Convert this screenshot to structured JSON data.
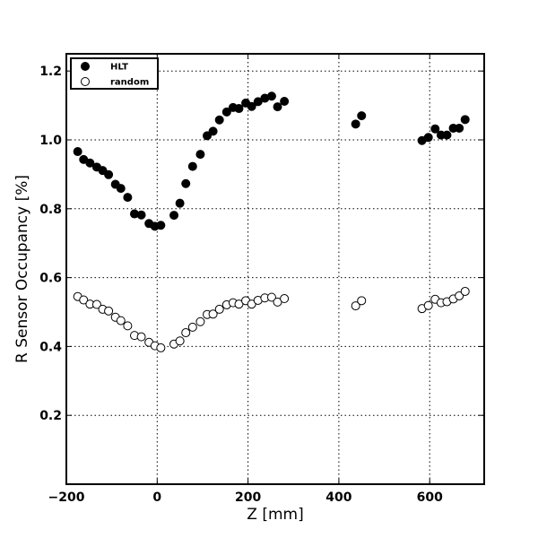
{
  "chart_data": {
    "type": "scatter",
    "title": "",
    "xlabel": "Z [mm]",
    "ylabel": "R Sensor Occupancy [%]",
    "xlim": [
      -200,
      720
    ],
    "ylim": [
      0,
      1.25
    ],
    "xticks": [
      -200,
      0,
      200,
      400,
      600
    ],
    "xtick_labels": [
      "−200",
      "0",
      "200",
      "400",
      "600"
    ],
    "yticks": [
      0.2,
      0.4,
      0.6,
      0.8,
      1.0,
      1.2
    ],
    "ytick_labels": [
      "0.2",
      "0.4",
      "0.6",
      "0.8",
      "1.0",
      "1.2"
    ],
    "grid": true,
    "legend_position": "top-left",
    "series": [
      {
        "name": "HLT",
        "marker": "filled-circle",
        "color": "#000000",
        "x": [
          -175,
          -162,
          -148,
          -133,
          -120,
          -107,
          -92,
          -80,
          -65,
          -50,
          -35,
          -18,
          -5,
          8,
          37,
          50,
          63,
          78,
          95,
          110,
          123,
          137,
          153,
          167,
          180,
          195,
          208,
          222,
          237,
          252,
          265,
          280,
          437,
          450,
          583,
          597,
          612,
          625,
          638,
          652,
          665,
          678
        ],
        "y": [
          0.966,
          0.943,
          0.933,
          0.921,
          0.911,
          0.899,
          0.871,
          0.859,
          0.833,
          0.785,
          0.782,
          0.757,
          0.749,
          0.752,
          0.781,
          0.816,
          0.873,
          0.923,
          0.958,
          1.012,
          1.025,
          1.058,
          1.081,
          1.094,
          1.091,
          1.107,
          1.097,
          1.111,
          1.121,
          1.127,
          1.096,
          1.112,
          1.046,
          1.07,
          0.998,
          1.007,
          1.032,
          1.014,
          1.014,
          1.034,
          1.034,
          1.059
        ]
      },
      {
        "name": "random",
        "marker": "open-circle",
        "color": "#000000",
        "x": [
          -175,
          -162,
          -148,
          -133,
          -120,
          -107,
          -92,
          -80,
          -65,
          -50,
          -35,
          -18,
          -5,
          8,
          37,
          50,
          63,
          78,
          95,
          110,
          123,
          137,
          153,
          167,
          180,
          195,
          208,
          222,
          237,
          252,
          265,
          280,
          437,
          450,
          583,
          597,
          612,
          625,
          638,
          652,
          665,
          678
        ],
        "y": [
          0.545,
          0.535,
          0.523,
          0.522,
          0.508,
          0.503,
          0.485,
          0.475,
          0.46,
          0.432,
          0.428,
          0.412,
          0.402,
          0.396,
          0.407,
          0.416,
          0.44,
          0.456,
          0.472,
          0.493,
          0.494,
          0.508,
          0.521,
          0.527,
          0.523,
          0.533,
          0.523,
          0.534,
          0.541,
          0.543,
          0.529,
          0.539,
          0.518,
          0.533,
          0.51,
          0.519,
          0.537,
          0.527,
          0.53,
          0.538,
          0.547,
          0.56
        ]
      }
    ]
  }
}
